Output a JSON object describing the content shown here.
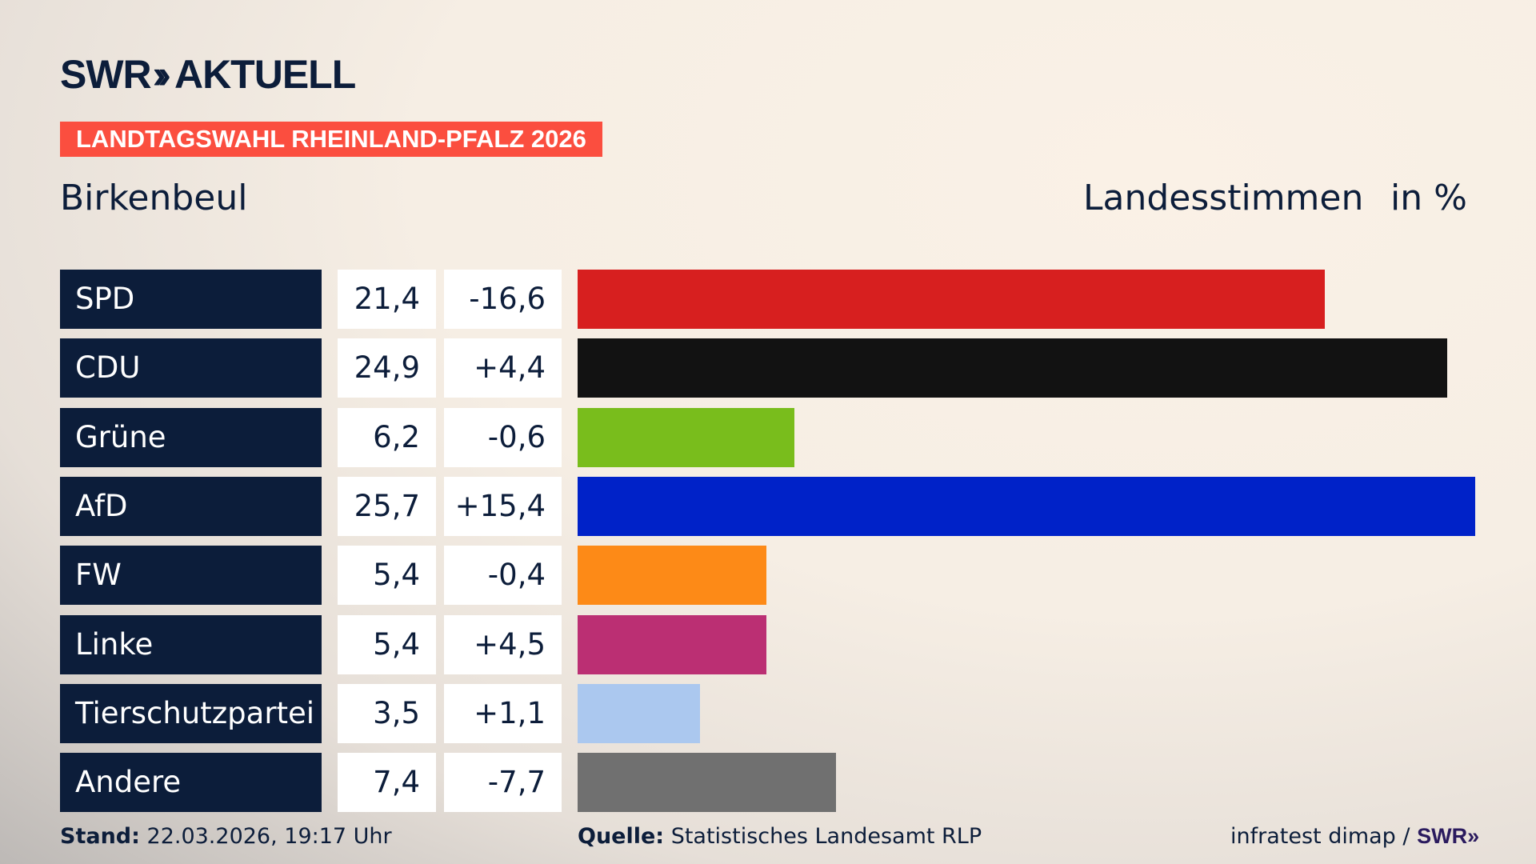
{
  "header": {
    "logo_text": "SWR",
    "logo_suffix": "AKTUELL",
    "banner": "LANDTAGSWAHL RHEINLAND-PFALZ 2026",
    "place": "Birkenbeul",
    "vote_type": "Landesstimmen",
    "unit": "in %"
  },
  "chart_data": {
    "type": "bar",
    "orientation": "horizontal",
    "categories": [
      "SPD",
      "CDU",
      "Grüne",
      "AfD",
      "FW",
      "Linke",
      "Tierschutzpartei",
      "Andere"
    ],
    "values": [
      21.4,
      24.9,
      6.2,
      25.7,
      5.4,
      5.4,
      3.5,
      7.4
    ],
    "values_label": [
      "21,4",
      "24,9",
      "6,2",
      "25,7",
      "5,4",
      "5,4",
      "3,5",
      "7,4"
    ],
    "diff_label": [
      "-16,6",
      "+4,4",
      "-0,6",
      "+15,4",
      "-0,4",
      "+4,5",
      "+1,1",
      "-7,7"
    ],
    "colors": [
      "#d71f1f",
      "#121212",
      "#79bd1c",
      "#0022c8",
      "#fd8a17",
      "#bb2f73",
      "#abc8ef",
      "#707070"
    ],
    "xlim": [
      0,
      25.7
    ]
  },
  "footer": {
    "stand_label": "Stand:",
    "stand_value": "22.03.2026, 19:17 Uhr",
    "source_label": "Quelle:",
    "source_value": "Statistisches Landesamt RLP",
    "credit": "infratest dimap /",
    "credit_logo": "SWR"
  }
}
